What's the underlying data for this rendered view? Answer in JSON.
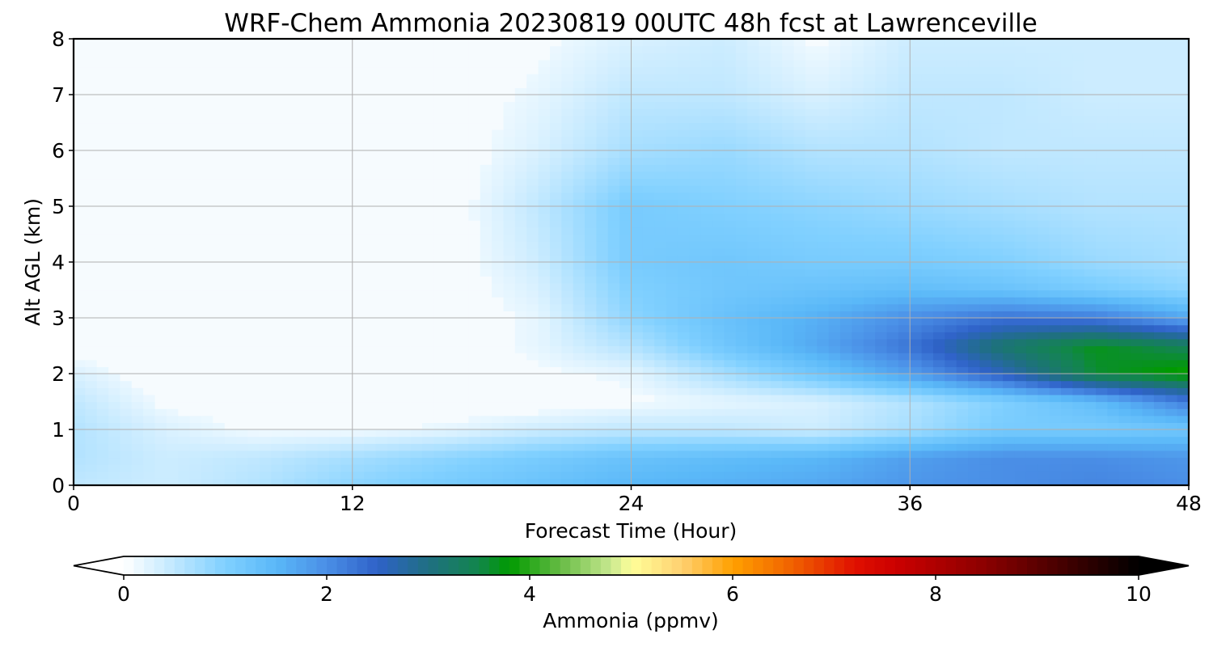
{
  "chart_data": {
    "type": "heatmap",
    "title": "WRF-Chem Ammonia  20230819 00UTC 48h fcst at Lawrenceville",
    "xlabel": "Forecast Time (Hour)",
    "ylabel": "Alt AGL (km)",
    "xlim": [
      0,
      48
    ],
    "ylim": [
      0,
      8
    ],
    "x_ticks": [
      "0",
      "12",
      "24",
      "36",
      "48"
    ],
    "y_ticks": [
      "0",
      "1",
      "2",
      "3",
      "4",
      "5",
      "6",
      "7",
      "8"
    ],
    "grid": true,
    "x": [
      0,
      4,
      8,
      12,
      16,
      20,
      24,
      28,
      32,
      36,
      40,
      44,
      48
    ],
    "y": [
      0,
      0.5,
      1,
      1.5,
      2,
      2.5,
      3,
      3.5,
      4,
      5,
      6,
      7,
      8
    ],
    "z": [
      [
        0.5,
        0.4,
        0.6,
        0.9,
        1.1,
        1.3,
        1.5,
        1.6,
        1.7,
        1.9,
        2.0,
        2.1,
        2.0
      ],
      [
        0.6,
        0.4,
        0.5,
        0.7,
        0.9,
        1.1,
        1.3,
        1.4,
        1.5,
        1.8,
        2.0,
        2.0,
        1.9
      ],
      [
        0.6,
        0.3,
        0.1,
        0.1,
        0.2,
        0.4,
        0.5,
        0.5,
        0.4,
        0.7,
        1.1,
        1.1,
        1.2
      ],
      [
        0.5,
        0.1,
        0.0,
        0.0,
        0.0,
        0.0,
        0.1,
        0.2,
        0.3,
        0.6,
        1.0,
        1.4,
        2.2
      ],
      [
        0.3,
        0.0,
        0.0,
        0.0,
        0.0,
        0.1,
        0.2,
        0.7,
        1.2,
        1.8,
        2.6,
        3.6,
        3.9
      ],
      [
        0.0,
        0.0,
        0.0,
        0.0,
        0.0,
        0.2,
        0.6,
        1.2,
        1.7,
        2.3,
        3.2,
        3.7,
        3.4
      ],
      [
        0.0,
        0.0,
        0.0,
        0.0,
        0.0,
        0.2,
        0.9,
        1.3,
        1.6,
        2.0,
        2.3,
        2.2,
        1.7
      ],
      [
        0.0,
        0.0,
        0.0,
        0.0,
        0.0,
        0.3,
        1.0,
        1.2,
        1.3,
        1.4,
        1.3,
        1.1,
        0.9
      ],
      [
        0.0,
        0.0,
        0.0,
        0.0,
        0.0,
        0.4,
        1.1,
        1.2,
        1.1,
        1.1,
        1.0,
        0.8,
        0.7
      ],
      [
        0.0,
        0.0,
        0.0,
        0.0,
        0.0,
        0.5,
        1.1,
        1.0,
        0.9,
        0.8,
        0.7,
        0.6,
        0.6
      ],
      [
        0.0,
        0.0,
        0.0,
        0.0,
        0.0,
        0.3,
        0.7,
        0.8,
        0.6,
        0.6,
        0.5,
        0.5,
        0.5
      ],
      [
        0.0,
        0.0,
        0.0,
        0.0,
        0.0,
        0.2,
        0.5,
        0.5,
        0.3,
        0.5,
        0.5,
        0.4,
        0.4
      ],
      [
        0.0,
        0.0,
        0.0,
        0.0,
        0.0,
        0.1,
        0.3,
        0.4,
        0.1,
        0.4,
        0.4,
        0.4,
        0.4
      ]
    ],
    "colorbar": {
      "label": "Ammonia  (ppmv)",
      "min": 0,
      "max": 10,
      "ticks": [
        "0",
        "2",
        "4",
        "6",
        "8",
        "10"
      ],
      "extend": "both",
      "stops": [
        [
          0.0,
          "#ffffff"
        ],
        [
          1.0,
          "#80d0ff"
        ],
        [
          1.5,
          "#5ab8f8"
        ],
        [
          2.0,
          "#4a8ee6"
        ],
        [
          2.5,
          "#2f62c8"
        ],
        [
          3.0,
          "#1f6f82"
        ],
        [
          3.5,
          "#12864c"
        ],
        [
          3.8,
          "#009a00"
        ],
        [
          4.3,
          "#66bb44"
        ],
        [
          4.8,
          "#c8e890"
        ],
        [
          5.0,
          "#ffff99"
        ],
        [
          5.5,
          "#ffd070"
        ],
        [
          6.0,
          "#ffa000"
        ],
        [
          6.6,
          "#f06000"
        ],
        [
          7.2,
          "#e01000"
        ],
        [
          7.6,
          "#cc0000"
        ],
        [
          8.5,
          "#8a0000"
        ],
        [
          9.3,
          "#400000"
        ],
        [
          10.0,
          "#000000"
        ]
      ]
    }
  }
}
